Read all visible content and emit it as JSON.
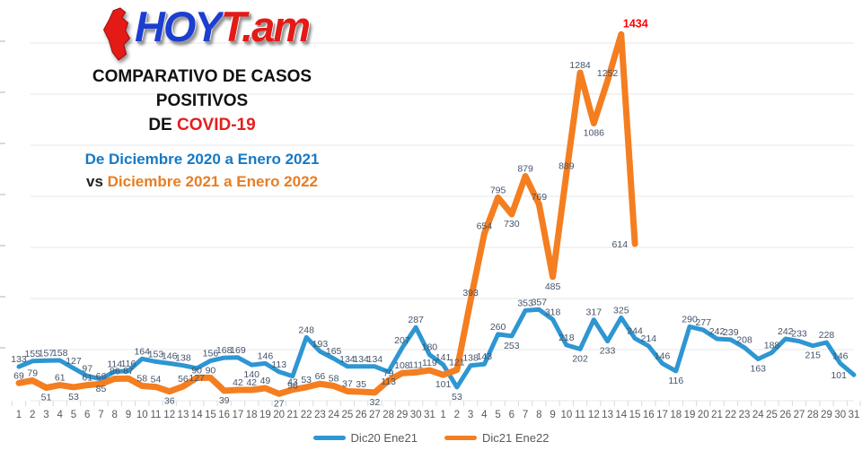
{
  "header": {
    "logo": {
      "blue_part": "HOY",
      "red_part": "T.am",
      "icon": "tamaulipas-map-icon"
    },
    "title_line1": "COMPARATIVO DE CASOS",
    "title_line2": "POSITIVOS",
    "title_line3_prefix": "DE ",
    "title_line3_highlight": "COVID-19",
    "subtitle_line1": "De Diciembre 2020 a Enero 2021",
    "subtitle_line2_prefix": "vs ",
    "subtitle_line2_rest": "Diciembre 2021 a Enero 2022"
  },
  "chart_data": {
    "type": "line",
    "title": "Comparativo de casos positivos de COVID-19",
    "x_labels": [
      "1",
      "2",
      "3",
      "4",
      "5",
      "6",
      "7",
      "8",
      "9",
      "10",
      "11",
      "12",
      "13",
      "14",
      "15",
      "16",
      "17",
      "18",
      "19",
      "20",
      "21",
      "22",
      "23",
      "24",
      "25",
      "26",
      "27",
      "28",
      "29",
      "30",
      "31",
      "1",
      "2",
      "3",
      "4",
      "5",
      "6",
      "7",
      "8",
      "9",
      "10",
      "11",
      "12",
      "13",
      "14",
      "15",
      "16",
      "17",
      "18",
      "19",
      "20",
      "21",
      "22",
      "23",
      "24",
      "25",
      "26",
      "27",
      "28",
      "29",
      "30",
      "31"
    ],
    "x_axis_note": "days 1-31 December followed by days 1-31 January",
    "ylim": [
      0,
      1400
    ],
    "grid_step": 200,
    "grid_on": true,
    "legend_position": "bottom-center",
    "label_color": "#44546a",
    "axis_text_color": "#595959",
    "grid_color": "#e7e7e7",
    "series": [
      {
        "name": "Dic20 Ene21",
        "color": "#2e96d2",
        "stroke_width": 5,
        "values": [
          133,
          155,
          157,
          158,
          127,
          97,
          85,
          114,
          116,
          164,
          153,
          146,
          138,
          127,
          156,
          168,
          169,
          140,
          146,
          113,
          96,
          248,
          193,
          165,
          134,
          134,
          134,
          113,
          207,
          287,
          180,
          141,
          53,
          138,
          143,
          260,
          253,
          353,
          357,
          318,
          218,
          202,
          317,
          233,
          325,
          244,
          214,
          146,
          116,
          290,
          277,
          242,
          239,
          208,
          163,
          188,
          242,
          233,
          215,
          228,
          146,
          101
        ]
      },
      {
        "name": "Dic21 Ene22",
        "color": "#f47e20",
        "stroke_width": 7,
        "highlight_max": true,
        "highlight_color": "#ff0000",
        "values": [
          69,
          79,
          51,
          61,
          53,
          61,
          66,
          86,
          87,
          58,
          54,
          36,
          56,
          90,
          90,
          39,
          42,
          42,
          49,
          27,
          43,
          53,
          66,
          58,
          37,
          35,
          32,
          79,
          108,
          111,
          119,
          101,
          121,
          393,
          654,
          795,
          730,
          879,
          769,
          485,
          889,
          1284,
          1086,
          1252,
          1434,
          614
        ]
      }
    ]
  },
  "legend": {
    "items": [
      {
        "label": "Dic20 Ene21",
        "color": "#2e96d2"
      },
      {
        "label": "Dic21 Ene22",
        "color": "#f47e20"
      }
    ]
  }
}
